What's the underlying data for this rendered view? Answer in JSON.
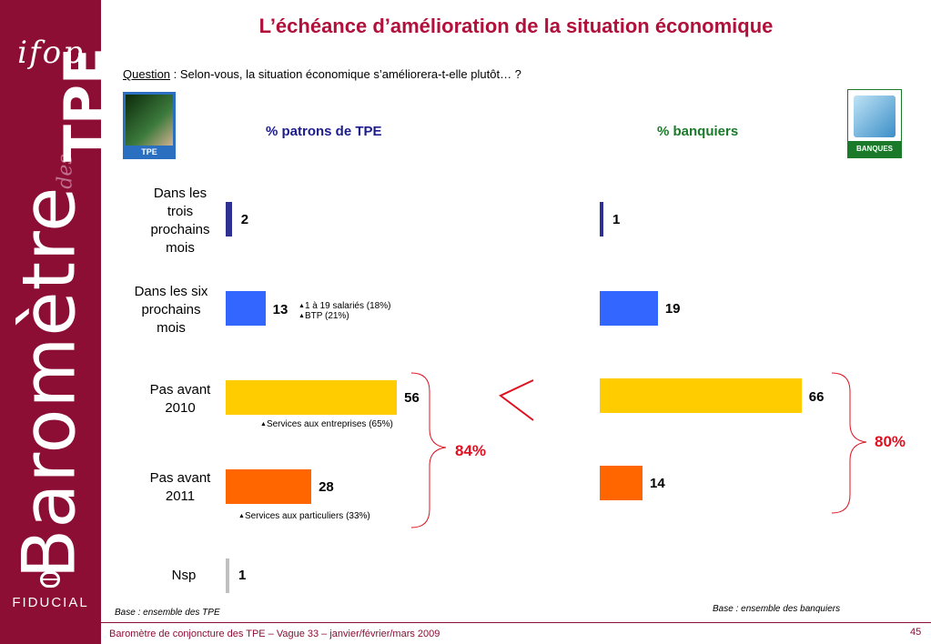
{
  "title": "L’échéance d’amélioration de la situation économique",
  "question": {
    "label": "Question",
    "sep": " : ",
    "text": " Selon-vous, la situation économique s’améliorera-t-elle plutôt… ?"
  },
  "sidebar": {
    "brand": "ifop",
    "vertical_main": "Baromètre",
    "vertical_des": "des",
    "vertical_tpe": "TPE",
    "partner": "FIDUCIAL"
  },
  "logos": {
    "tpe_label": "TPE",
    "bank_label": "BANQUES"
  },
  "colors": {
    "brand": "#8c0e34",
    "title": "#b0103a",
    "bar1": "#2e3192",
    "bar2": "#3366ff",
    "bar3": "#ffcc00",
    "bar4": "#ff6600",
    "bar5": "#c0c0c0",
    "accent": "#e01020"
  },
  "chart_data": [
    {
      "type": "bar",
      "orientation": "horizontal",
      "title": "% patrons de TPE",
      "categories": [
        "Dans les trois prochains mois",
        "Dans les six prochains mois",
        "Pas avant 2010",
        "Pas avant 2011",
        "Nsp"
      ],
      "values": [
        2,
        13,
        56,
        28,
        1
      ],
      "annotations": [
        {
          "category": "Dans les six prochains mois",
          "lines": [
            "1 à 19 salariés (18%)",
            "BTP (21%)"
          ]
        },
        {
          "category": "Pas avant 2010",
          "lines": [
            "Services aux entreprises (65%)"
          ]
        },
        {
          "category": "Pas avant 2011",
          "lines": [
            "Services aux particuliers (33%)"
          ]
        }
      ],
      "bracket_total": "84%",
      "base": "Base : ensemble des TPE"
    },
    {
      "type": "bar",
      "orientation": "horizontal",
      "title": "% banquiers",
      "categories": [
        "Dans les trois prochains mois",
        "Dans les six prochains mois",
        "Pas avant 2010",
        "Pas avant 2011"
      ],
      "values": [
        1,
        19,
        66,
        14
      ],
      "bracket_total": "80%",
      "base": "Base : ensemble des banquiers"
    }
  ],
  "comparison_symbol": "<",
  "footer": {
    "text": "Baromètre de conjoncture des TPE – Vague 33 – janvier/février/mars 2009",
    "page": "45"
  }
}
